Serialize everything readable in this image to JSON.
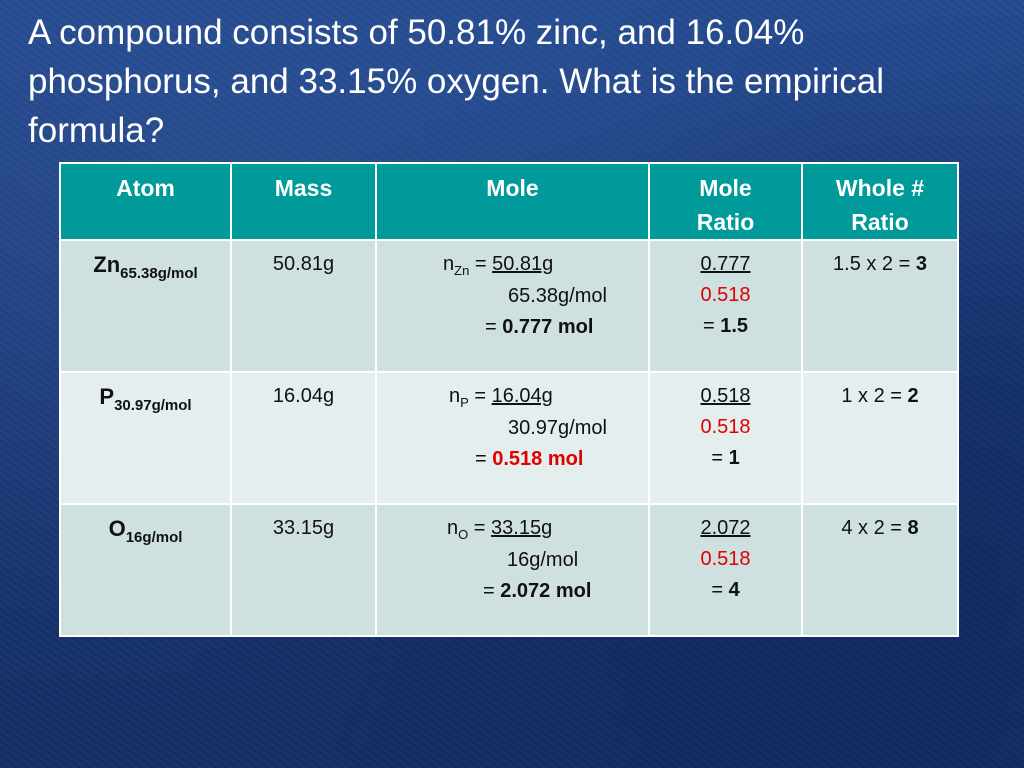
{
  "title": "A compound consists of 50.81% zinc, and 16.04% phosphorus, and 33.15% oxygen. What is the empirical formula?",
  "table": {
    "headers": {
      "atom": "Atom",
      "mass": "Mass",
      "mole": "Mole",
      "mole_ratio_1": "Mole",
      "mole_ratio_2": "Ratio",
      "whole_ratio_1": "Whole #",
      "whole_ratio_2": "Ratio"
    },
    "rows": [
      {
        "symbol": "Zn",
        "molar_mass": "65.38g/mol",
        "mass": "50.81g",
        "n_label": "n",
        "n_sub": "Zn",
        "eq": " = ",
        "numerator": "50.81g",
        "denominator": "65.38g/mol",
        "result_prefix": "= ",
        "result": "0.777 mol",
        "ratio_num": "0.777",
        "ratio_den": "0.518",
        "ratio_prefix": "= ",
        "ratio_result": "1.5",
        "whole_expr": "1.5 x 2 = ",
        "whole_result": "3"
      },
      {
        "symbol": "P",
        "molar_mass": "30.97g/mol",
        "mass": "16.04g",
        "n_label": "n",
        "n_sub": "P",
        "eq": " = ",
        "numerator": "16.04g",
        "denominator": "30.97g/mol",
        "result_prefix": "= ",
        "result": "0.518 mol",
        "ratio_num": "0.518",
        "ratio_den": "0.518",
        "ratio_prefix": "= ",
        "ratio_result": "1",
        "whole_expr": "1 x 2 = ",
        "whole_result": "2"
      },
      {
        "symbol": "O",
        "molar_mass": "16g/mol",
        "mass": "33.15g",
        "n_label": "n",
        "n_sub": "O",
        "eq": " = ",
        "numerator": "33.15g",
        "denominator": "16g/mol",
        "result_prefix": "= ",
        "result": "2.072 mol",
        "ratio_num": "2.072",
        "ratio_den": "0.518",
        "ratio_prefix": "= ",
        "ratio_result": "4",
        "whole_expr": "4 x 2 = ",
        "whole_result": "8"
      }
    ]
  },
  "colors": {
    "background": "#1b3a7a",
    "header_fill": "#009a9a",
    "row_fill_odd": "#cfe0e0",
    "row_fill_even": "#e4eeee",
    "highlight_red": "#e00000"
  }
}
